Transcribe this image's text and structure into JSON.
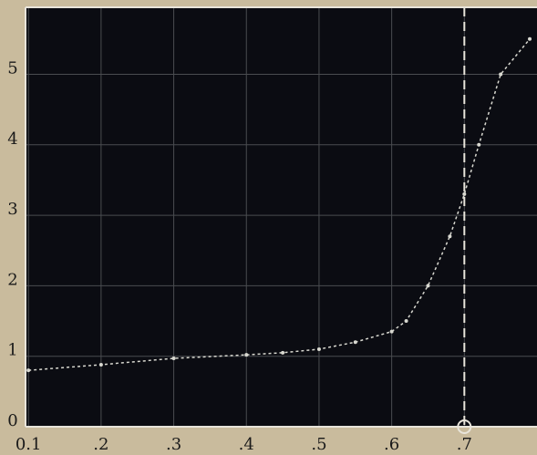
{
  "chart_data": {
    "type": "line",
    "x": [
      0.1,
      0.2,
      0.3,
      0.4,
      0.45,
      0.5,
      0.55,
      0.6,
      0.62,
      0.65,
      0.68,
      0.7,
      0.72,
      0.75,
      0.79
    ],
    "values": [
      0.8,
      0.88,
      0.97,
      1.02,
      1.05,
      1.1,
      1.2,
      1.35,
      1.5,
      2.0,
      2.7,
      3.3,
      4.0,
      5.0,
      5.5
    ],
    "color": "#d8d8d0",
    "xlim": [
      0.096,
      0.8
    ],
    "ylim": [
      0,
      5.95
    ],
    "xticks": [
      {
        "value": 0.1,
        "label": "0.1"
      },
      {
        "value": 0.2,
        "label": ".2"
      },
      {
        "value": 0.3,
        "label": ".3"
      },
      {
        "value": 0.4,
        "label": ".4"
      },
      {
        "value": 0.5,
        "label": ".5"
      },
      {
        "value": 0.6,
        "label": ".6"
      },
      {
        "value": 0.7,
        "label": ".7"
      }
    ],
    "yticks": [
      0,
      1,
      2,
      3,
      4,
      5
    ],
    "grid": true,
    "marker_x": 0.7
  }
}
